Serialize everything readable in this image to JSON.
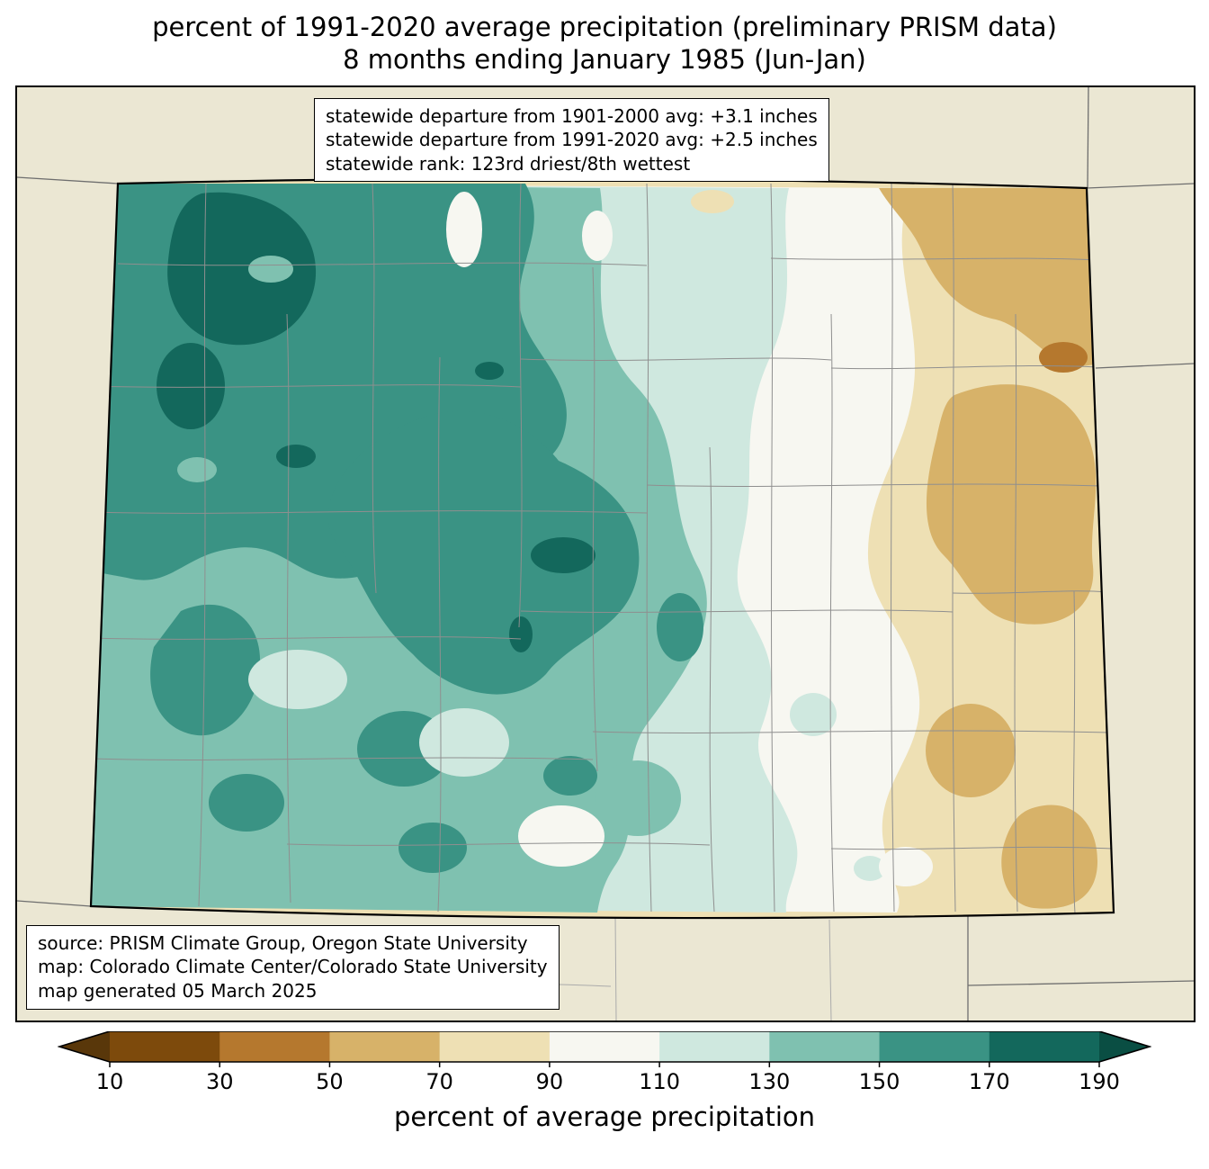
{
  "title": {
    "line1": "percent of 1991-2020 average precipitation (preliminary PRISM data)",
    "line2": "8 months ending January 1985 (Jun-Jan)"
  },
  "stats_box": {
    "line1": "statewide departure from 1901-2000 avg: +3.1 inches",
    "line2": "statewide departure from 1991-2020 avg: +2.5 inches",
    "line3": "statewide rank: 123rd driest/8th wettest"
  },
  "source_box": {
    "line1": "source: PRISM Climate Group, Oregon State University",
    "line2": "map: Colorado Climate Center/Colorado State University",
    "line3": "map generated 05 March 2025"
  },
  "colorbar": {
    "label": "percent of average precipitation",
    "ticks": [
      "10",
      "30",
      "50",
      "70",
      "90",
      "110",
      "130",
      "150",
      "170",
      "190"
    ],
    "under_color": "#59370a",
    "over_color": "#0a4e43",
    "segment_colors": [
      "#7d4a0c",
      "#b5782e",
      "#d7b269",
      "#eee0b4",
      "#f7f7f1",
      "#cfe8df",
      "#7fc1b0",
      "#3a9384",
      "#13685c"
    ]
  },
  "palette": {
    "under_10": "#59370a",
    "p10_30": "#7d4a0c",
    "p30_50": "#b5782e",
    "p50_70": "#d7b269",
    "p70_90": "#eee0b4",
    "p90_110": "#f7f7f1",
    "p110_130": "#cfe8df",
    "p130_150": "#7fc1b0",
    "p150_170": "#3a9384",
    "p170_190": "#13685c",
    "over_190": "#0a4e43",
    "outside_state": "#ebe7d3",
    "county_line": "#8f8f8f",
    "neighbor_line": "#6e6e6e",
    "state_border": "#000000"
  }
}
